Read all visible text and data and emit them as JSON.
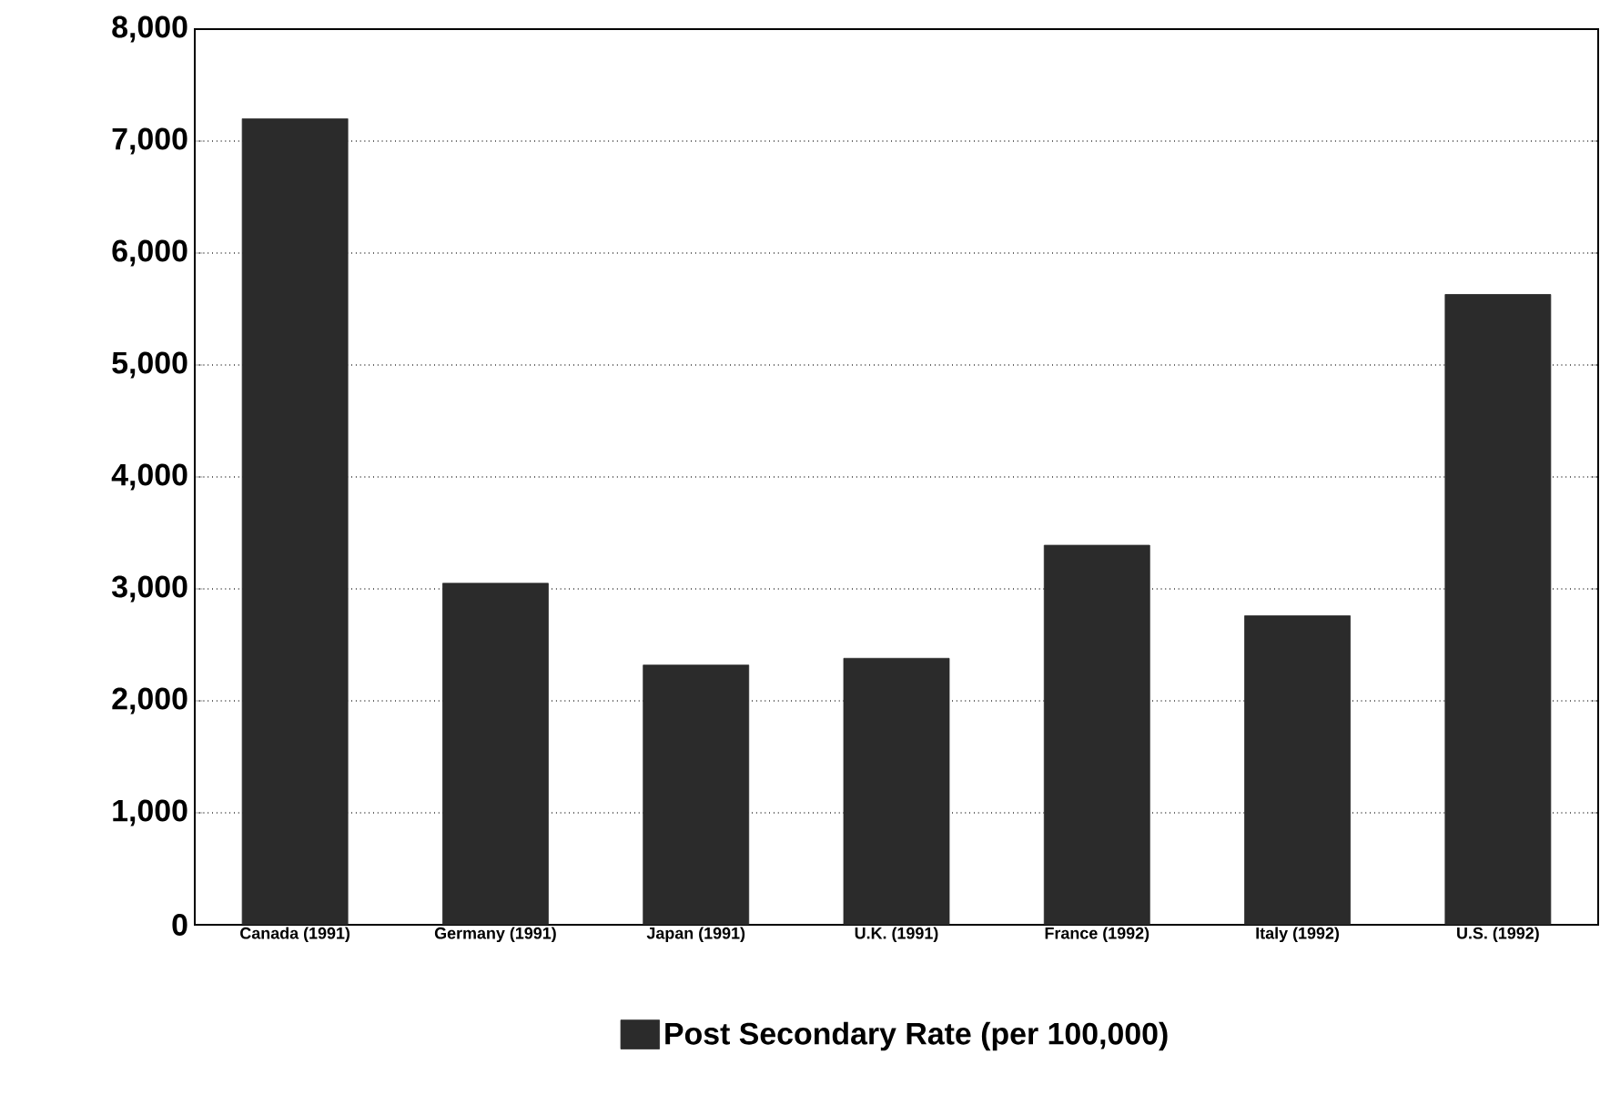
{
  "chart_data": {
    "type": "bar",
    "categories": [
      "Canada (1991)",
      "Germany (1991)",
      "Japan (1991)",
      "U.K. (1991)",
      "France (1992)",
      "Italy (1992)",
      "U.S. (1992)"
    ],
    "series": [
      {
        "name": "Post Secondary Rate (per 100,000)",
        "color": "#2b2b2b",
        "values": [
          7200,
          3050,
          2320,
          2380,
          3390,
          2760,
          5630
        ]
      }
    ],
    "ylim": [
      0,
      8000
    ],
    "yticks": [
      {
        "value": 0,
        "label": "0"
      },
      {
        "value": 1000,
        "label": "1,000"
      },
      {
        "value": 2000,
        "label": "2,000"
      },
      {
        "value": 3000,
        "label": "3,000"
      },
      {
        "value": 4000,
        "label": "4,000"
      },
      {
        "value": 5000,
        "label": "5,000"
      },
      {
        "value": 6000,
        "label": "6,000"
      },
      {
        "value": 7000,
        "label": "7,000"
      },
      {
        "value": 8000,
        "label": "8,000"
      }
    ],
    "grid": "y",
    "legend": "bottom"
  }
}
